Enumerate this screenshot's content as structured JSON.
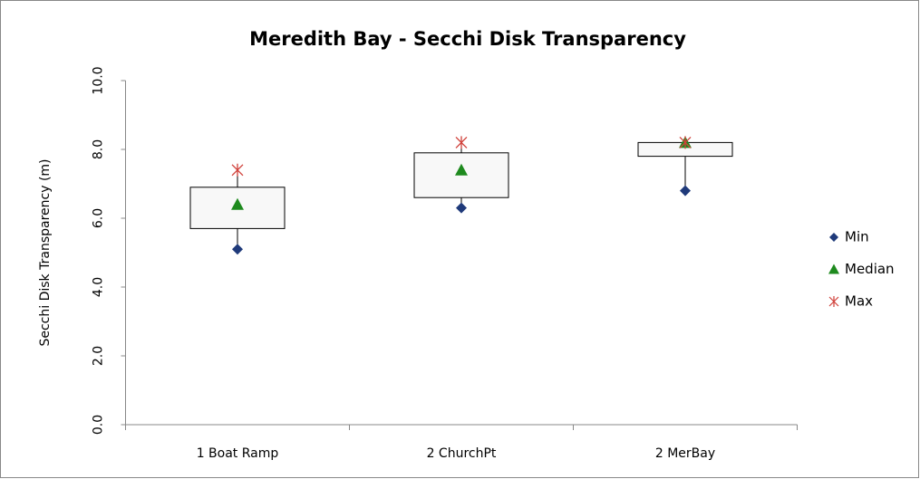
{
  "chart_data": {
    "type": "box",
    "title": "Meredith Bay  - Secchi Disk Transparency",
    "y_label": "Secchi Disk Transparency (m)",
    "categories": [
      "1 Boat Ramp",
      "2 ChurchPt",
      "2 MerBay"
    ],
    "box": {
      "color": "#f8f8f8",
      "q1": [
        5.7,
        6.6,
        7.8
      ],
      "q3": [
        6.9,
        7.9,
        8.2
      ]
    },
    "series": [
      {
        "name": "Min",
        "color": "#1f3a7a",
        "marker": "diamond",
        "values": [
          5.1,
          6.3,
          6.8
        ]
      },
      {
        "name": "Median",
        "color": "#1e8a1e",
        "marker": "triangle",
        "values": [
          6.4,
          7.4,
          8.2
        ]
      },
      {
        "name": "Max",
        "color": "#d0403a",
        "marker": "asterisk",
        "values": [
          7.4,
          8.2,
          8.2
        ]
      }
    ],
    "ylim": [
      0,
      10
    ],
    "yticks": [
      {
        "value": 0,
        "label": "0.0"
      },
      {
        "value": 2,
        "label": "2.0"
      },
      {
        "value": 4,
        "label": "4.0"
      },
      {
        "value": 6,
        "label": "6.0"
      },
      {
        "value": 8,
        "label": "8.0"
      },
      {
        "value": 10,
        "label": "10.0"
      }
    ],
    "legend": "right"
  }
}
